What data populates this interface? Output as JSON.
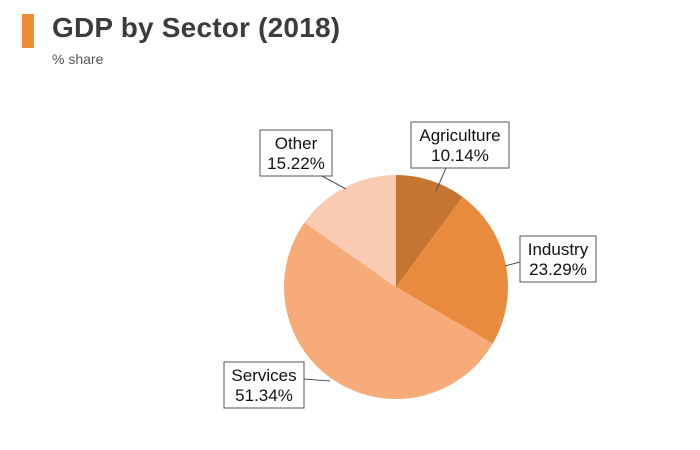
{
  "header": {
    "title": "GDP by Sector (2018)",
    "subtitle": "% share",
    "accent_color": "#f08a33"
  },
  "chart_data": {
    "type": "pie",
    "title": "GDP by Sector (2018)",
    "subtitle": "% share",
    "start_angle_deg": 0,
    "direction": "clockwise",
    "slices": [
      {
        "label": "Agriculture",
        "value": 10.14,
        "value_label": "10.14%",
        "color": "#c57432"
      },
      {
        "label": "Industry",
        "value": 23.29,
        "value_label": "23.29%",
        "color": "#e98b3e"
      },
      {
        "label": "Services",
        "value": 51.34,
        "value_label": "51.34%",
        "color": "#f7ab79"
      },
      {
        "label": "Other",
        "value": 15.22,
        "value_label": "15.22%",
        "color": "#f9cbb2"
      }
    ]
  }
}
